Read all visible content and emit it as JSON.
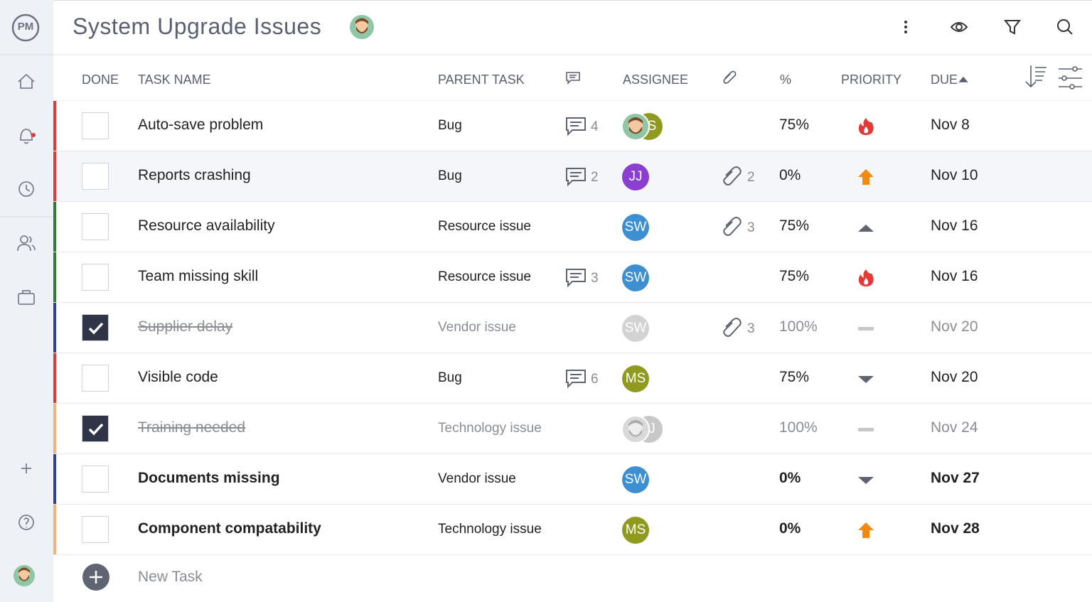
{
  "header": {
    "logo": "PM",
    "title": "System Upgrade Issues"
  },
  "columns": [
    "DONE",
    "TASK NAME",
    "PARENT TASK",
    "ASSIGNEE",
    "%",
    "PRIORITY",
    "DUE"
  ],
  "rows": [
    {
      "done": false,
      "bold": false,
      "color": "#e53935",
      "name": "Auto-save problem",
      "parent": "Bug",
      "comments": 4,
      "assignee": "S",
      "assignee_color": "#8f9a1e",
      "photo": true,
      "attachments": null,
      "percent": "75%",
      "priority": "critical",
      "due": "Nov 8"
    },
    {
      "done": false,
      "bold": false,
      "color": "#e53935",
      "name": "Reports crashing",
      "parent": "Bug",
      "comments": 2,
      "assignee": "JJ",
      "assignee_color": "#8a3fd1",
      "photo": false,
      "attachments": 2,
      "percent": "0%",
      "priority": "high",
      "due": "Nov 10"
    },
    {
      "done": false,
      "bold": false,
      "color": "#2e7d32",
      "name": "Resource availability",
      "parent": "Resource issue",
      "comments": null,
      "assignee": "SW",
      "assignee_color": "#3d8fd1",
      "photo": false,
      "attachments": 3,
      "percent": "75%",
      "priority": "medium",
      "due": "Nov 16"
    },
    {
      "done": false,
      "bold": false,
      "color": "#2e7d32",
      "name": "Team missing skill",
      "parent": "Resource issue",
      "comments": 3,
      "assignee": "SW",
      "assignee_color": "#3d8fd1",
      "photo": false,
      "attachments": null,
      "percent": "75%",
      "priority": "critical",
      "due": "Nov 16"
    },
    {
      "done": true,
      "bold": false,
      "color": "#303f9f",
      "name": "Supplier delay",
      "parent": "Vendor issue",
      "comments": null,
      "assignee": "SW",
      "assignee_color": "#d3d3d3",
      "photo": false,
      "attachments": 3,
      "percent": "100%",
      "priority": "none",
      "due": "Nov 20"
    },
    {
      "done": false,
      "bold": false,
      "color": "#e53935",
      "name": "Visible code",
      "parent": "Bug",
      "comments": 6,
      "assignee": "MS",
      "assignee_color": "#8f9a1e",
      "photo": false,
      "attachments": null,
      "percent": "75%",
      "priority": "low",
      "due": "Nov 20"
    },
    {
      "done": true,
      "bold": false,
      "color": "#f6b27a",
      "name": "Training needed",
      "parent": "Technology issue",
      "comments": null,
      "assignee": "J",
      "assignee_color": "#c8c8c8",
      "photo": true,
      "attachments": null,
      "percent": "100%",
      "priority": "none",
      "due": "Nov 24"
    },
    {
      "done": false,
      "bold": true,
      "color": "#303f9f",
      "name": "Documents missing",
      "parent": "Vendor issue",
      "comments": null,
      "assignee": "SW",
      "assignee_color": "#3d8fd1",
      "photo": false,
      "attachments": null,
      "percent": "0%",
      "priority": "low",
      "due": "Nov 27"
    },
    {
      "done": false,
      "bold": true,
      "color": "#f6b27a",
      "name": "Component compatability",
      "parent": "Technology issue",
      "comments": null,
      "assignee": "MS",
      "assignee_color": "#8f9a1e",
      "photo": false,
      "attachments": null,
      "percent": "0%",
      "priority": "high",
      "due": "Nov 28"
    }
  ],
  "new_task": "New Task"
}
